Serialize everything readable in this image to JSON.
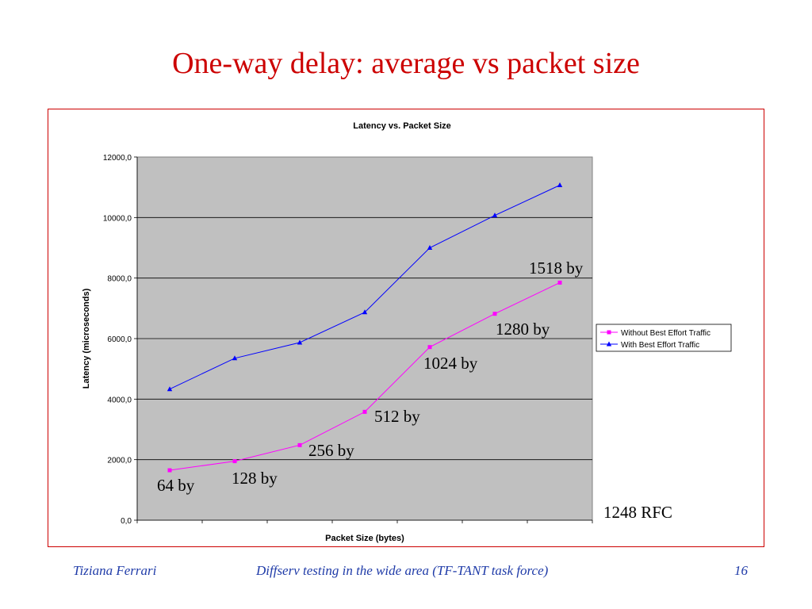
{
  "slide": {
    "title": "One-way delay: average vs packet size",
    "footer_left": "Tiziana Ferrari",
    "footer_center": "Diffserv testing in the wide area  (TF-TANT task force)",
    "footer_right": "16"
  },
  "colors": {
    "title": "#cc0000",
    "footer": "#1f3ba8",
    "plot_bg": "#c0c0c0",
    "series_without": "#ff00ff",
    "series_with": "#0000ff"
  },
  "annotations": {
    "a64": "64 by",
    "a128": "128 by",
    "a256": "256 by",
    "a512": "512 by",
    "a1024": "1024 by",
    "a1280": "1280 by",
    "a1518": "1518 by",
    "rfc": "1248 RFC"
  },
  "chart_data": {
    "type": "line",
    "title": "Latency vs. Packet Size",
    "xlabel": "Packet Size (bytes)",
    "ylabel": "Latency (microseconds)",
    "ylim": [
      0,
      12000
    ],
    "yticks": [
      "0,0",
      "2000,0",
      "4000,0",
      "6000,0",
      "8000,0",
      "10000,0",
      "12000,0"
    ],
    "grid": "horizontal",
    "legend": "right",
    "series": [
      {
        "name": "Without Best Effort Traffic",
        "marker": "square",
        "color": "#ff00ff",
        "values": [
          1650,
          1950,
          2480,
          3580,
          5720,
          6820,
          7850
        ]
      },
      {
        "name": "With Best Effort Traffic",
        "marker": "triangle",
        "color": "#0000ff",
        "values": [
          4330,
          5350,
          5870,
          6870,
          9000,
          10070,
          11070
        ]
      }
    ]
  }
}
